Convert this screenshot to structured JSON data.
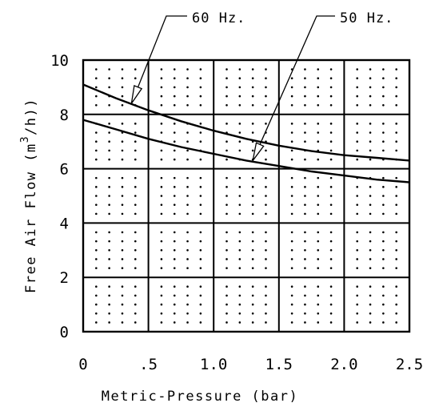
{
  "chart_data": {
    "type": "line",
    "title": "",
    "xlabel": "Metric-Pressure (bar)",
    "ylabel": "Free Air Flow (m3/h))",
    "ylabel_parts": {
      "pre": "Free Air Flow (m",
      "sup": "3",
      "post": "/h))"
    },
    "xlim": [
      0,
      2.5
    ],
    "ylim": [
      0,
      10
    ],
    "xticks": [
      0,
      0.5,
      1.0,
      1.5,
      2.0,
      2.5
    ],
    "xtick_labels": [
      "0",
      ".5",
      "1.0",
      "1.5",
      "2.0",
      "2.5"
    ],
    "yticks": [
      0,
      2,
      4,
      6,
      8,
      10
    ],
    "ytick_labels": [
      "0",
      "2",
      "4",
      "6",
      "8",
      "10"
    ],
    "grid": true,
    "series": [
      {
        "name": "60 Hz.",
        "x": [
          0,
          0.25,
          0.5,
          0.75,
          1.0,
          1.25,
          1.5,
          1.75,
          2.0,
          2.25,
          2.5
        ],
        "y": [
          9.1,
          8.6,
          8.15,
          7.75,
          7.4,
          7.1,
          6.85,
          6.65,
          6.5,
          6.4,
          6.3
        ]
      },
      {
        "name": "50 Hz.",
        "x": [
          0,
          0.25,
          0.5,
          0.75,
          1.0,
          1.25,
          1.5,
          1.75,
          2.0,
          2.25,
          2.5
        ],
        "y": [
          7.8,
          7.45,
          7.1,
          6.8,
          6.55,
          6.3,
          6.1,
          5.9,
          5.75,
          5.6,
          5.5
        ]
      }
    ],
    "annotations": [
      {
        "text": "60 Hz.",
        "series": "60 Hz.",
        "points_to": {
          "x": 0.37,
          "y": 8.4
        }
      },
      {
        "text": "50 Hz.",
        "series": "50 Hz.",
        "points_to": {
          "x": 1.3,
          "y": 6.3
        }
      }
    ]
  }
}
